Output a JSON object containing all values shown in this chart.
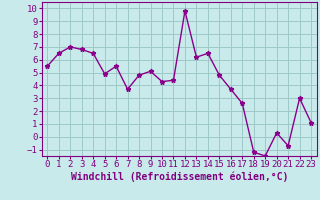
{
  "x": [
    0,
    1,
    2,
    3,
    4,
    5,
    6,
    7,
    8,
    9,
    10,
    11,
    12,
    13,
    14,
    15,
    16,
    17,
    18,
    19,
    20,
    21,
    22,
    23
  ],
  "y": [
    5.5,
    6.5,
    7.0,
    6.8,
    6.5,
    4.9,
    5.5,
    3.7,
    4.8,
    5.1,
    4.3,
    4.4,
    9.8,
    6.2,
    6.5,
    4.8,
    3.7,
    2.6,
    -1.2,
    -1.5,
    0.3,
    -0.7,
    3.0,
    1.1
  ],
  "line_color": "#8b008b",
  "marker": "*",
  "marker_size": 3.5,
  "xlabel": "Windchill (Refroidissement éolien,°C)",
  "xlim": [
    -0.5,
    23.5
  ],
  "ylim": [
    -1.5,
    10.5
  ],
  "yticks": [
    -1,
    0,
    1,
    2,
    3,
    4,
    5,
    6,
    7,
    8,
    9,
    10
  ],
  "xticks": [
    0,
    1,
    2,
    3,
    4,
    5,
    6,
    7,
    8,
    9,
    10,
    11,
    12,
    13,
    14,
    15,
    16,
    17,
    18,
    19,
    20,
    21,
    22,
    23
  ],
  "bg_color": "#c8eaea",
  "grid_color": "#9ec8c8",
  "tick_color": "#800080",
  "tick_label_fontsize": 6.5,
  "xlabel_fontsize": 7,
  "linewidth": 1.0
}
